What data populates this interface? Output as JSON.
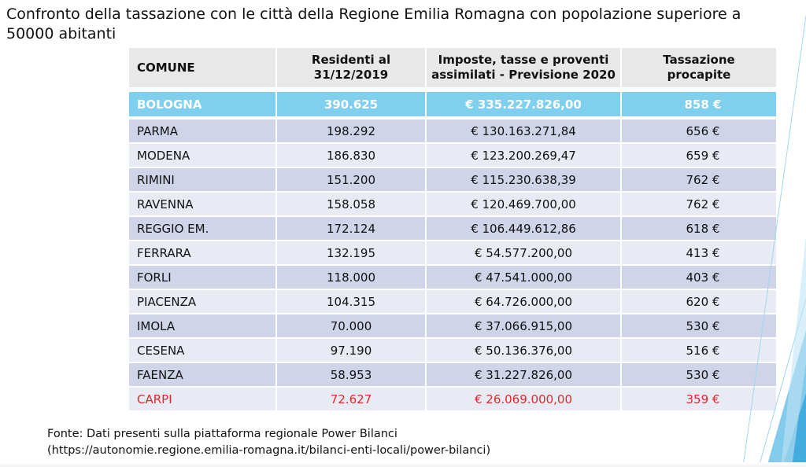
{
  "title": "Confronto della tassazione con le città della Regione Emilia Romagna con popolazione superiore a 50000 abitanti",
  "table": {
    "headers": {
      "comune": "COMUNE",
      "residenti_l1": "Residenti al",
      "residenti_l2": "31/12/2019",
      "imposte_l1": "Imposte, tasse e proventi",
      "imposte_l2": "assimilati - Previsione 2020",
      "tassazione_l1": "Tassazione",
      "tassazione_l2": "procapite"
    },
    "rows": [
      {
        "comune": "BOLOGNA",
        "residenti": "390.625",
        "imposte": "€ 335.227.826,00",
        "procapite": "858 €"
      },
      {
        "comune": "PARMA",
        "residenti": "198.292",
        "imposte": "€ 130.163.271,84",
        "procapite": "656 €"
      },
      {
        "comune": "MODENA",
        "residenti": "186.830",
        "imposte": "€ 123.200.269,47",
        "procapite": "659 €"
      },
      {
        "comune": "RIMINI",
        "residenti": "151.200",
        "imposte": "€ 115.230.638,39",
        "procapite": "762 €"
      },
      {
        "comune": "RAVENNA",
        "residenti": "158.058",
        "imposte": "€ 120.469.700,00",
        "procapite": "762 €"
      },
      {
        "comune": "REGGIO EM.",
        "residenti": "172.124",
        "imposte": "€ 106.449.612,86",
        "procapite": "618 €"
      },
      {
        "comune": "FERRARA",
        "residenti": "132.195",
        "imposte": "€ 54.577.200,00",
        "procapite": "413 €"
      },
      {
        "comune": "FORLI",
        "residenti": "118.000",
        "imposte": "€ 47.541.000,00",
        "procapite": "403 €"
      },
      {
        "comune": "PIACENZA",
        "residenti": "104.315",
        "imposte": "€ 64.726.000,00",
        "procapite": "620 €"
      },
      {
        "comune": "IMOLA",
        "residenti": "70.000",
        "imposte": "€ 37.066.915,00",
        "procapite": "530 €"
      },
      {
        "comune": "CESENA",
        "residenti": "97.190",
        "imposte": "€ 50.136.376,00",
        "procapite": "516 €"
      },
      {
        "comune": "FAENZA",
        "residenti": "58.953",
        "imposte": "€ 31.227.826,00",
        "procapite": "530 €"
      },
      {
        "comune": "CARPI",
        "residenti": "72.627",
        "imposte": "€ 26.069.000,00",
        "procapite": "359 €"
      }
    ]
  },
  "source": {
    "line1": "Fonte: Dati presenti sulla piattaforma regionale Power Bilanci",
    "line2": "(https://autonomie.regione.emilia-romagna.it/bilanci-enti-locali/power-bilanci)"
  },
  "colors": {
    "highlight_row": "#7fcfee",
    "carpi_text": "#e8262c",
    "row_dark": "#cfd4e8",
    "row_light": "#e9ebf4",
    "header": "#e8e8e8",
    "deco_accent": "#5ab9e6"
  }
}
